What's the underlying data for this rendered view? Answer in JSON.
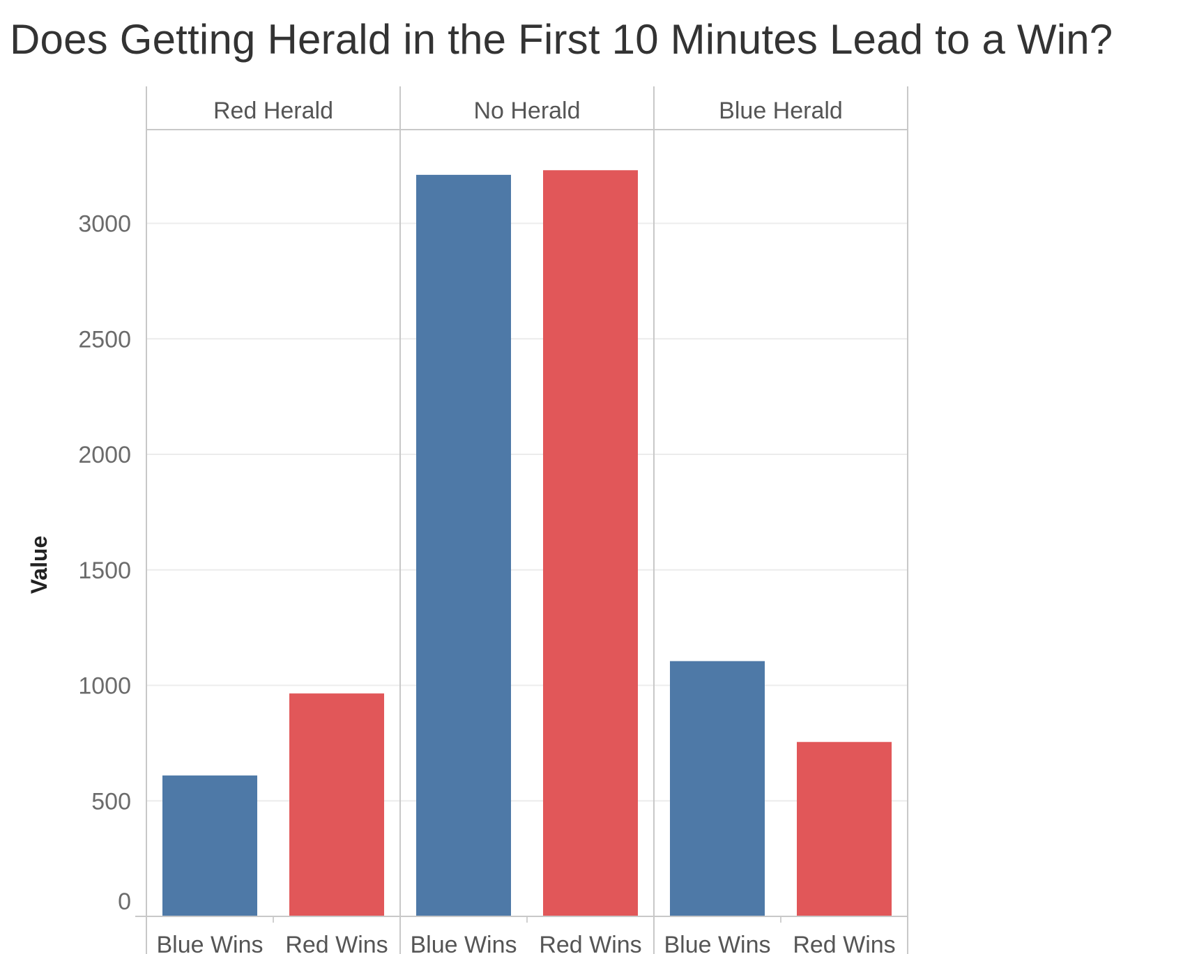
{
  "chart_data": {
    "type": "bar",
    "title": "Does Getting Herald in the First 10 Minutes Lead to a Win?",
    "ylabel": "Value",
    "xlabel": "",
    "ylim": [
      0,
      3500
    ],
    "yticks": [
      0,
      500,
      1000,
      1500,
      2000,
      2500,
      3000
    ],
    "grid": true,
    "panels": [
      {
        "label": "Red Herald",
        "categories": [
          "Blue Wins",
          "Red Wins"
        ],
        "values": [
          610,
          965
        ]
      },
      {
        "label": "No Herald",
        "categories": [
          "Blue Wins",
          "Red Wins"
        ],
        "values": [
          3210,
          3230
        ]
      },
      {
        "label": "Blue Herald",
        "categories": [
          "Blue Wins",
          "Red Wins"
        ],
        "values": [
          1105,
          755
        ]
      }
    ],
    "colors": {
      "Blue Wins": "#4e79a7",
      "Red Wins": "#e15759"
    }
  }
}
